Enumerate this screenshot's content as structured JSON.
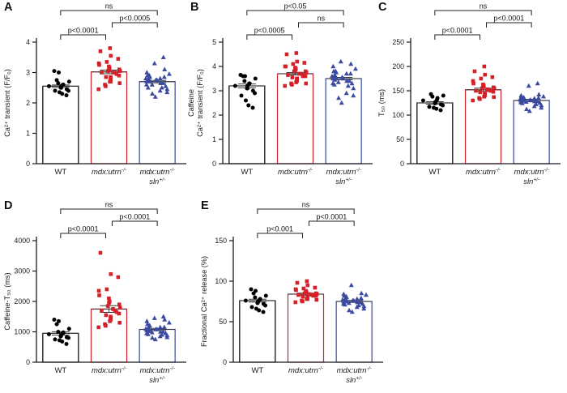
{
  "figure": {
    "background": "#ffffff"
  },
  "colors": {
    "wt": "#000000",
    "mdx": "#d52027",
    "sln": "#3b4a9f",
    "axis": "#1a1a1a",
    "stat": "#3a3a3a"
  },
  "group_labels": [
    [
      [
        {
          "t": "WT"
        }
      ]
    ],
    [
      [
        {
          "t": "mdx:utrn",
          "i": 1
        },
        {
          "t": "-/-",
          "i": 1,
          "s": 1
        }
      ]
    ],
    [
      [
        {
          "t": "mdx:utrn",
          "i": 1
        },
        {
          "t": "-/-",
          "i": 1,
          "s": 1
        }
      ],
      [
        {
          "t": "sln",
          "i": 1
        },
        {
          "t": "+/-",
          "i": 1,
          "s": 1
        }
      ]
    ]
  ],
  "chart_data": [
    {
      "type": "bar",
      "subtype": "bar-with-scatter-overlay",
      "panel": "A",
      "ylabel_lines": [
        "Ca²⁺ transient (F/F₀)"
      ],
      "ylim": [
        0,
        4
      ],
      "yticks": [
        0,
        1,
        2,
        3,
        4
      ],
      "categories": [
        "WT",
        "mdx:utrn-/-",
        "mdx:utrn-/- sln+/-"
      ],
      "groups": [
        {
          "name": "WT",
          "marker": "circle",
          "color": "#000000",
          "mean": 2.55,
          "sem": 0.04,
          "values": [
            2.25,
            2.3,
            2.35,
            2.4,
            2.4,
            2.45,
            2.5,
            2.5,
            2.55,
            2.55,
            2.6,
            2.6,
            2.65,
            2.7,
            2.75,
            3.0,
            3.05
          ]
        },
        {
          "name": "mdx:utrn-/-",
          "marker": "square",
          "color": "#d52027",
          "mean": 3.02,
          "sem": 0.06,
          "values": [
            2.45,
            2.55,
            2.6,
            2.65,
            2.7,
            2.7,
            2.75,
            2.8,
            2.85,
            2.85,
            2.9,
            2.95,
            3.0,
            3.0,
            3.0,
            3.05,
            3.05,
            3.1,
            3.1,
            3.15,
            3.2,
            3.25,
            3.3,
            3.35,
            3.45,
            3.55,
            3.7,
            3.8
          ]
        },
        {
          "name": "mdx:utrn-/- sln+/-",
          "marker": "triangle",
          "color": "#3b4a9f",
          "mean": 2.7,
          "sem": 0.04,
          "values": [
            2.2,
            2.3,
            2.35,
            2.4,
            2.45,
            2.5,
            2.5,
            2.55,
            2.6,
            2.6,
            2.65,
            2.65,
            2.7,
            2.7,
            2.7,
            2.75,
            2.75,
            2.75,
            2.8,
            2.8,
            2.8,
            2.85,
            2.85,
            2.9,
            2.9,
            2.95,
            3.0,
            3.1,
            3.3,
            3.5
          ]
        }
      ],
      "significance": [
        {
          "pair": [
            0,
            1
          ],
          "label": "p<0.0001"
        },
        {
          "pair": [
            1,
            2
          ],
          "label": "p<0.0005"
        },
        {
          "pair": [
            0,
            2
          ],
          "label": "ns"
        }
      ]
    },
    {
      "type": "bar",
      "subtype": "bar-with-scatter-overlay",
      "panel": "B",
      "ylabel_lines": [
        "Caffeine",
        "Ca²⁺ transient (F/F₀)"
      ],
      "ylim": [
        0,
        5
      ],
      "yticks": [
        0,
        1,
        2,
        3,
        4,
        5
      ],
      "categories": [
        "WT",
        "mdx:utrn-/-",
        "mdx:utrn-/- sln+/-"
      ],
      "groups": [
        {
          "name": "WT",
          "marker": "circle",
          "color": "#000000",
          "mean": 3.2,
          "sem": 0.08,
          "values": [
            2.3,
            2.4,
            2.6,
            2.8,
            2.9,
            3.0,
            3.1,
            3.1,
            3.2,
            3.2,
            3.3,
            3.3,
            3.4,
            3.5,
            3.6,
            3.6,
            3.65
          ]
        },
        {
          "name": "mdx:utrn-/-",
          "marker": "square",
          "color": "#d52027",
          "mean": 3.7,
          "sem": 0.05,
          "values": [
            3.2,
            3.25,
            3.3,
            3.3,
            3.35,
            3.4,
            3.45,
            3.5,
            3.5,
            3.55,
            3.6,
            3.6,
            3.65,
            3.7,
            3.7,
            3.75,
            3.8,
            3.8,
            3.85,
            3.9,
            3.95,
            4.0,
            4.0,
            4.1,
            4.15,
            4.2,
            4.5,
            4.55
          ]
        },
        {
          "name": "mdx:utrn-/- sln+/-",
          "marker": "triangle",
          "color": "#3b4a9f",
          "mean": 3.5,
          "sem": 0.05,
          "values": [
            2.5,
            2.7,
            2.8,
            2.9,
            3.1,
            3.2,
            3.25,
            3.3,
            3.3,
            3.35,
            3.4,
            3.4,
            3.45,
            3.5,
            3.5,
            3.5,
            3.55,
            3.6,
            3.6,
            3.65,
            3.7,
            3.7,
            3.75,
            3.8,
            3.8,
            3.9,
            4.0,
            4.1,
            4.2
          ]
        }
      ],
      "significance": [
        {
          "pair": [
            0,
            1
          ],
          "label": "p<0.0005"
        },
        {
          "pair": [
            1,
            2
          ],
          "label": "ns"
        },
        {
          "pair": [
            0,
            2
          ],
          "label": "p<0.05"
        }
      ]
    },
    {
      "type": "bar",
      "subtype": "bar-with-scatter-overlay",
      "panel": "C",
      "ylabel_lines": [
        "T₅₀ (ms)"
      ],
      "ylim": [
        0,
        250
      ],
      "yticks": [
        0,
        50,
        100,
        150,
        200,
        250
      ],
      "categories": [
        "WT",
        "mdx:utrn-/-",
        "mdx:utrn-/- sln+/-"
      ],
      "groups": [
        {
          "name": "WT",
          "marker": "circle",
          "color": "#000000",
          "mean": 125,
          "sem": 2.5,
          "values": [
            110,
            113,
            115,
            117,
            120,
            122,
            124,
            125,
            127,
            130,
            132,
            135,
            138,
            140,
            143
          ]
        },
        {
          "name": "mdx:utrn-/-",
          "marker": "square",
          "color": "#d52027",
          "mean": 152,
          "sem": 3.5,
          "values": [
            130,
            133,
            135,
            137,
            138,
            140,
            142,
            143,
            145,
            147,
            148,
            150,
            150,
            152,
            153,
            155,
            155,
            157,
            158,
            160,
            163,
            165,
            170,
            175,
            178,
            183,
            190,
            200
          ]
        },
        {
          "name": "mdx:utrn-/- sln+/-",
          "marker": "triangle",
          "color": "#3b4a9f",
          "mean": 130,
          "sem": 2.5,
          "values": [
            108,
            112,
            115,
            118,
            120,
            122,
            124,
            125,
            126,
            127,
            128,
            128,
            129,
            130,
            130,
            130,
            131,
            132,
            132,
            133,
            134,
            135,
            135,
            136,
            137,
            138,
            140,
            142,
            160,
            165
          ]
        }
      ],
      "significance": [
        {
          "pair": [
            0,
            1
          ],
          "label": "p<0.0001"
        },
        {
          "pair": [
            1,
            2
          ],
          "label": "p<0.0001"
        },
        {
          "pair": [
            0,
            2
          ],
          "label": "ns"
        }
      ]
    },
    {
      "type": "bar",
      "subtype": "bar-with-scatter-overlay",
      "panel": "D",
      "ylabel_lines": [
        "Caffeine-T₅₀ (ms)"
      ],
      "ylim": [
        0,
        4000
      ],
      "yticks": [
        0,
        1000,
        2000,
        3000,
        4000
      ],
      "categories": [
        "WT",
        "mdx:utrn-/-",
        "mdx:utrn-/- sln+/-"
      ],
      "groups": [
        {
          "name": "WT",
          "marker": "circle",
          "color": "#000000",
          "mean": 950,
          "sem": 55,
          "values": [
            600,
            680,
            720,
            750,
            800,
            820,
            850,
            880,
            900,
            920,
            950,
            980,
            1000,
            1100,
            1250,
            1350,
            1400
          ]
        },
        {
          "name": "mdx:utrn-/-",
          "marker": "square",
          "color": "#d52027",
          "mean": 1750,
          "sem": 110,
          "values": [
            1150,
            1200,
            1250,
            1300,
            1350,
            1400,
            1450,
            1450,
            1500,
            1550,
            1600,
            1650,
            1700,
            1700,
            1750,
            1800,
            1850,
            1900,
            1950,
            2000,
            2100,
            2200,
            2350,
            2400,
            2800,
            2900,
            3600
          ]
        },
        {
          "name": "mdx:utrn-/- sln+/-",
          "marker": "triangle",
          "color": "#3b4a9f",
          "mean": 1080,
          "sem": 35,
          "values": [
            750,
            800,
            820,
            850,
            880,
            900,
            920,
            950,
            950,
            980,
            1000,
            1000,
            1020,
            1050,
            1050,
            1080,
            1080,
            1100,
            1100,
            1120,
            1150,
            1150,
            1200,
            1200,
            1250,
            1300,
            1350,
            1400,
            1450,
            1500
          ]
        }
      ],
      "significance": [
        {
          "pair": [
            0,
            1
          ],
          "label": "p<0.0001"
        },
        {
          "pair": [
            1,
            2
          ],
          "label": "p<0.0001"
        },
        {
          "pair": [
            0,
            2
          ],
          "label": "ns"
        }
      ]
    },
    {
      "type": "bar",
      "subtype": "bar-with-scatter-overlay",
      "panel": "E",
      "ylabel_lines": [
        "Fractional Ca²⁺ release (%)"
      ],
      "ylim": [
        0,
        150
      ],
      "yticks": [
        0,
        50,
        100,
        150
      ],
      "categories": [
        "WT",
        "mdx:utrn-/-",
        "mdx:utrn-/- sln+/-"
      ],
      "groups": [
        {
          "name": "WT",
          "marker": "circle",
          "color": "#000000",
          "mean": 76,
          "sem": 1.8,
          "values": [
            62,
            64,
            66,
            68,
            70,
            72,
            73,
            74,
            75,
            76,
            77,
            78,
            80,
            82,
            85,
            88,
            90
          ]
        },
        {
          "name": "mdx:utrn-/-",
          "marker": "square",
          "color": "#d52027",
          "mean": 84,
          "sem": 1.2,
          "values": [
            74,
            75,
            76,
            77,
            78,
            78,
            79,
            80,
            80,
            81,
            82,
            82,
            83,
            83,
            84,
            84,
            85,
            85,
            86,
            87,
            88,
            89,
            90,
            91,
            92,
            95,
            98,
            100
          ]
        },
        {
          "name": "mdx:utrn-/- sln+/-",
          "marker": "triangle",
          "color": "#3b4a9f",
          "mean": 75,
          "sem": 1.2,
          "values": [
            62,
            64,
            66,
            68,
            69,
            70,
            71,
            72,
            72,
            73,
            74,
            74,
            75,
            75,
            75,
            76,
            76,
            77,
            77,
            78,
            78,
            79,
            80,
            81,
            82,
            83,
            84,
            85,
            95
          ]
        }
      ],
      "significance": [
        {
          "pair": [
            0,
            1
          ],
          "label": "p<0.001"
        },
        {
          "pair": [
            1,
            2
          ],
          "label": "p<0.0001"
        },
        {
          "pair": [
            0,
            2
          ],
          "label": "ns"
        }
      ]
    }
  ]
}
